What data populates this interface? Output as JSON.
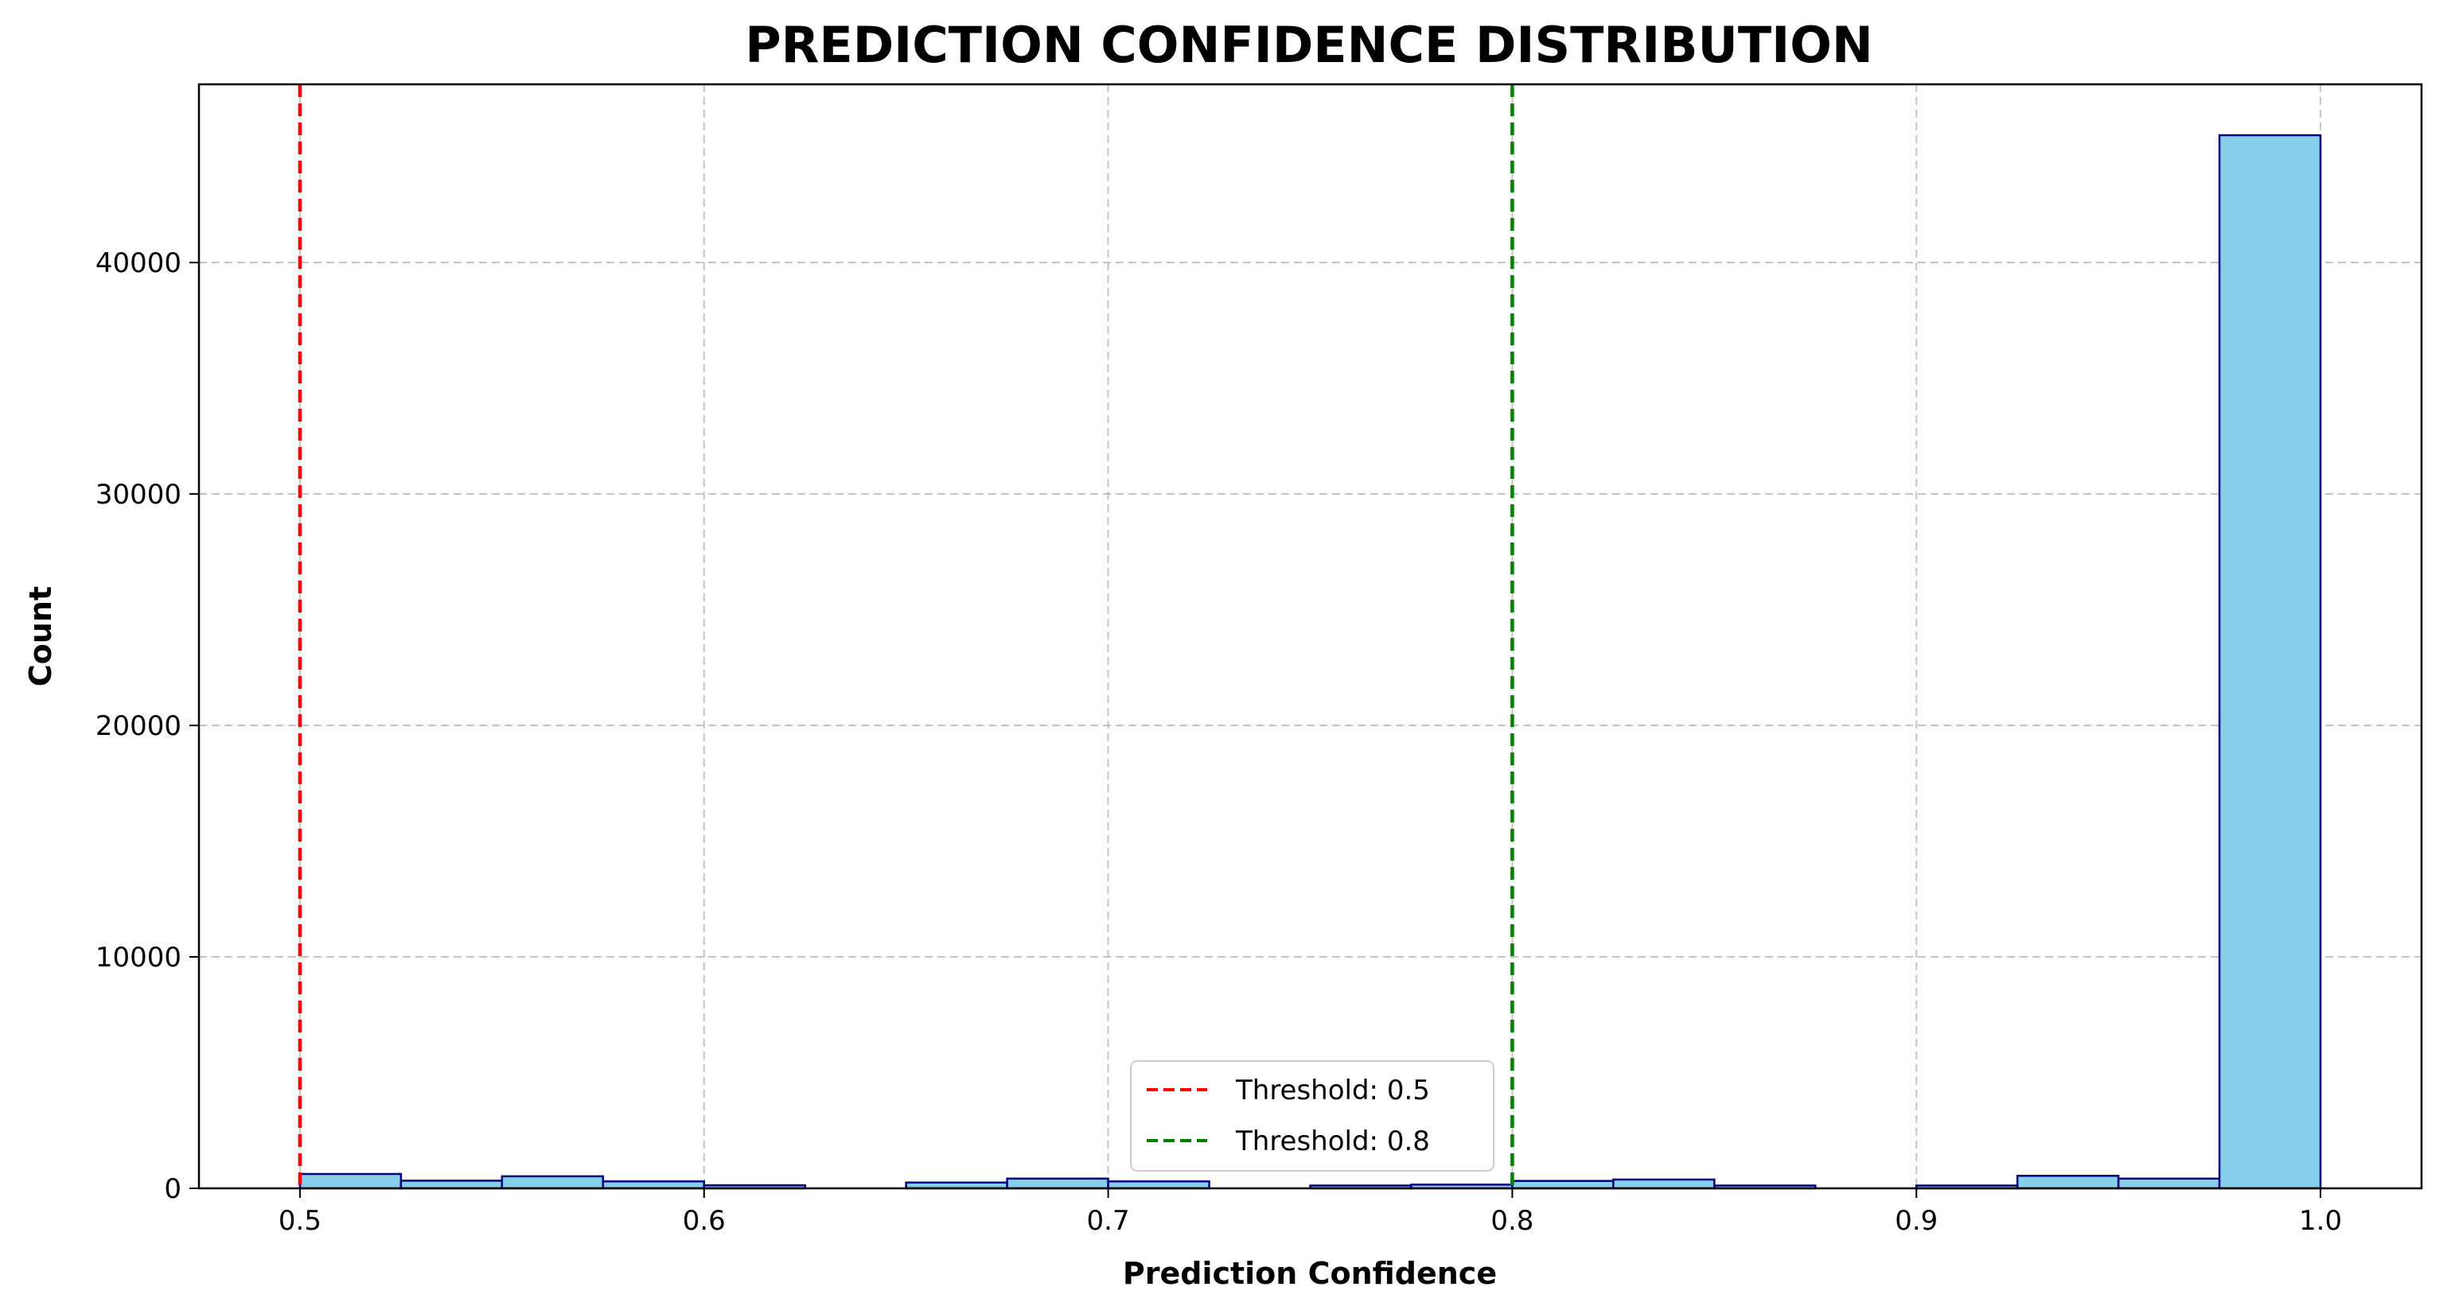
{
  "chart_data": {
    "type": "bar",
    "title": "PREDICTION CONFIDENCE DISTRIBUTION",
    "xlabel": "Prediction Confidence",
    "ylabel": "Count",
    "xlim": [
      0.475,
      1.025
    ],
    "ylim": [
      0,
      47700
    ],
    "x_ticks": [
      {
        "value": 0.5,
        "label": "0.5"
      },
      {
        "value": 0.6,
        "label": "0.6"
      },
      {
        "value": 0.7,
        "label": "0.7"
      },
      {
        "value": 0.8,
        "label": "0.8"
      },
      {
        "value": 0.9,
        "label": "0.9"
      },
      {
        "value": 1.0,
        "label": "1.0"
      }
    ],
    "y_ticks": [
      {
        "value": 0,
        "label": "0"
      },
      {
        "value": 10000,
        "label": "10000"
      },
      {
        "value": 20000,
        "label": "20000"
      },
      {
        "value": 30000,
        "label": "30000"
      },
      {
        "value": 40000,
        "label": "40000"
      }
    ],
    "grid": true,
    "bar_fill": "#87CEEB",
    "bar_edge": "#000080",
    "bins": [
      {
        "start": 0.5,
        "end": 0.525,
        "count": 620
      },
      {
        "start": 0.525,
        "end": 0.55,
        "count": 330
      },
      {
        "start": 0.55,
        "end": 0.575,
        "count": 520
      },
      {
        "start": 0.575,
        "end": 0.6,
        "count": 300
      },
      {
        "start": 0.6,
        "end": 0.625,
        "count": 130
      },
      {
        "start": 0.625,
        "end": 0.65,
        "count": 0
      },
      {
        "start": 0.65,
        "end": 0.675,
        "count": 250
      },
      {
        "start": 0.675,
        "end": 0.7,
        "count": 420
      },
      {
        "start": 0.7,
        "end": 0.725,
        "count": 300
      },
      {
        "start": 0.725,
        "end": 0.75,
        "count": 0
      },
      {
        "start": 0.75,
        "end": 0.775,
        "count": 120
      },
      {
        "start": 0.775,
        "end": 0.8,
        "count": 160
      },
      {
        "start": 0.8,
        "end": 0.825,
        "count": 320
      },
      {
        "start": 0.825,
        "end": 0.85,
        "count": 380
      },
      {
        "start": 0.85,
        "end": 0.875,
        "count": 120
      },
      {
        "start": 0.875,
        "end": 0.9,
        "count": 0
      },
      {
        "start": 0.9,
        "end": 0.925,
        "count": 120
      },
      {
        "start": 0.925,
        "end": 0.95,
        "count": 540
      },
      {
        "start": 0.95,
        "end": 0.975,
        "count": 420
      },
      {
        "start": 0.975,
        "end": 1.0,
        "count": 45500
      }
    ],
    "thresholds": [
      {
        "value": 0.5,
        "label": "Threshold: 0.5",
        "color": "#FF0000"
      },
      {
        "value": 0.8,
        "label": "Threshold: 0.8",
        "color": "#008000"
      }
    ],
    "legend_position": "lower-center"
  }
}
